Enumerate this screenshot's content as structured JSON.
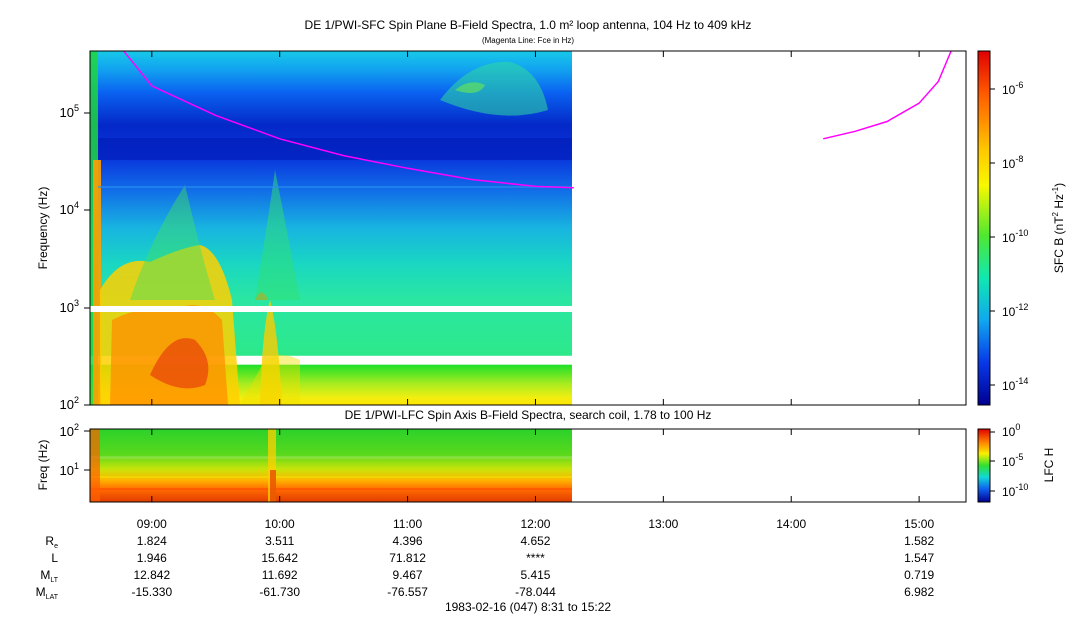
{
  "colors": {
    "fce_line": "#ff00ff",
    "frame": "#000000"
  },
  "chart_data": [
    {
      "type": "heatmap",
      "title": "DE 1/PWI-SFC  Spin Plane B-Field Spectra, 1.0 m² loop antenna, 104 Hz to 409 kHz",
      "subtitle": "(Magenta Line: Fce in Hz)",
      "ylabel": "Frequency (Hz)",
      "yscale": "log",
      "ylim": [
        100,
        409000
      ],
      "ytick_labels": [
        "10^2",
        "10^3",
        "10^4",
        "10^5"
      ],
      "time_range": [
        "08:31",
        "15:22"
      ],
      "data_end": "12:17",
      "colorbar": {
        "label": "SFC B (nT^2 Hz^-1)",
        "scale": "log",
        "range": [
          1e-15,
          1e-05
        ],
        "tick_labels": [
          "10^-6",
          "10^-8",
          "10^-10",
          "10^-12",
          "10^-14"
        ]
      },
      "series": [
        {
          "name": "Fce",
          "points": [
            [
              8.78,
              409000
            ],
            [
              9.0,
              180000
            ],
            [
              9.5,
              90000
            ],
            [
              10.0,
              52000
            ],
            [
              10.5,
              35000
            ],
            [
              11.0,
              26000
            ],
            [
              11.5,
              20000
            ],
            [
              12.0,
              17000
            ],
            [
              12.3,
              16500
            ]
          ]
        },
        {
          "name": "Fce",
          "points": [
            [
              14.25,
              52000
            ],
            [
              14.5,
              62000
            ],
            [
              14.75,
              78000
            ],
            [
              15.0,
              120000
            ],
            [
              15.15,
              200000
            ],
            [
              15.25,
              409000
            ]
          ]
        }
      ]
    },
    {
      "type": "heatmap",
      "title": "DE 1/PWI-LFC  Spin Axis B-Field Spectra, search coil, 1.78 to 100 Hz",
      "ylabel": "Freq (Hz)",
      "yscale": "log",
      "ylim": [
        1.78,
        100
      ],
      "ytick_labels": [
        "10^2",
        "10^1"
      ],
      "time_range": [
        "08:31",
        "15:22"
      ],
      "data_end": "12:17",
      "colorbar": {
        "label": "LFC H",
        "scale": "log",
        "range": [
          1e-12,
          1
        ],
        "tick_labels": [
          "10^0",
          "10^-5",
          "10^-10"
        ]
      }
    }
  ],
  "time_axis": {
    "ticks": [
      "09:00",
      "10:00",
      "11:00",
      "12:00",
      "13:00",
      "14:00",
      "15:00"
    ]
  },
  "ephemeris": [
    {
      "label": "R",
      "sub": "e",
      "values": [
        "1.824",
        "3.511",
        "4.396",
        "4.652",
        "",
        "",
        "1.582"
      ]
    },
    {
      "label": "L",
      "sub": "",
      "values": [
        "1.946",
        "15.642",
        "71.812",
        "****",
        "",
        "",
        "1.547"
      ]
    },
    {
      "label": "M",
      "sub": "LT",
      "values": [
        "12.842",
        "11.692",
        "9.467",
        "5.415",
        "",
        "",
        "0.719"
      ]
    },
    {
      "label": "M",
      "sub": "LAT",
      "values": [
        "-15.330",
        "-61.730",
        "-76.557",
        "-78.044",
        "",
        "",
        "6.982"
      ]
    }
  ],
  "footer": "1983-02-16 (047) 8:31 to 15:22"
}
